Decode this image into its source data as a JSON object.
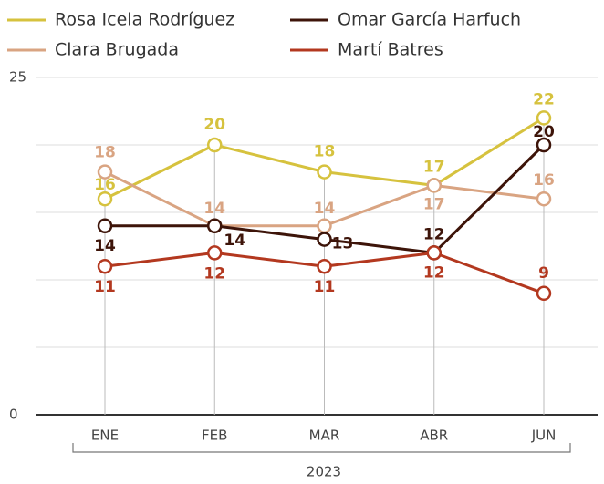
{
  "chart_data": {
    "type": "line",
    "categories": [
      "ENE",
      "FEB",
      "MAR",
      "ABR",
      "JUN"
    ],
    "x_group_label": "2023",
    "series": [
      {
        "name": "Rosa Icela Rodríguez",
        "color": "#d6c23e",
        "values": [
          16,
          20,
          18,
          17,
          22
        ]
      },
      {
        "name": "Clara Brugada",
        "color": "#d9a482",
        "values": [
          18,
          14,
          14,
          17,
          16
        ]
      },
      {
        "name": "Omar García Harfuch",
        "color": "#3d1409",
        "values": [
          14,
          14,
          13,
          12,
          20
        ]
      },
      {
        "name": "Martí Batres",
        "color": "#b3381f",
        "values": [
          11,
          12,
          11,
          12,
          9
        ]
      }
    ],
    "ylim": [
      0,
      25
    ],
    "yticks": [
      0,
      25
    ],
    "ygrid": [
      5,
      10,
      15,
      20
    ],
    "legend": "top"
  }
}
